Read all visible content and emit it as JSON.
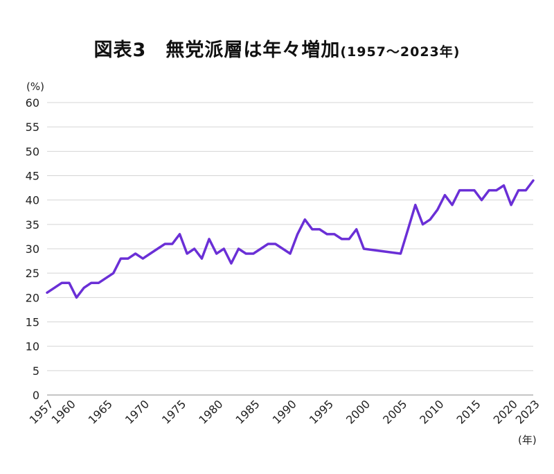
{
  "chart_data": {
    "type": "line",
    "title": "図表3　無党派層は年々増加",
    "subtitle": "(1957〜2023年)",
    "y_unit_label": "(%)",
    "x_unit_label": "(年)",
    "ylim": [
      0,
      60
    ],
    "xlim": [
      1957,
      2023
    ],
    "yticks": [
      "0",
      "5",
      "10",
      "15",
      "20",
      "25",
      "30",
      "35",
      "40",
      "45",
      "50",
      "55",
      "60"
    ],
    "xticks": [
      "1957",
      "1960",
      "1965",
      "1970",
      "1975",
      "1980",
      "1985",
      "1990",
      "1995",
      "2000",
      "2005",
      "2010",
      "2015",
      "2020",
      "2023"
    ],
    "grid": true,
    "line_color": "#6a2fd6",
    "series": [
      {
        "x": [
          1957,
          1958,
          1959,
          1960,
          1961,
          1962,
          1963,
          1964,
          1965,
          1966,
          1967,
          1968,
          1969,
          1970,
          1971,
          1972,
          1973,
          1974,
          1975,
          1976,
          1977,
          1978,
          1979,
          1980,
          1981,
          1982,
          1983,
          1984,
          1985,
          1986,
          1987,
          1988,
          1989,
          1990,
          1991,
          1992,
          1993,
          1994,
          1995,
          1996,
          1997,
          1998,
          1999,
          2000,
          2005,
          2006,
          2007,
          2008,
          2009,
          2010,
          2011,
          2012,
          2013,
          2014,
          2015,
          2016,
          2017,
          2018,
          2019,
          2020,
          2021,
          2022,
          2023
        ],
        "values": [
          21,
          22,
          23,
          23,
          20,
          22,
          23,
          23,
          24,
          25,
          28,
          28,
          29,
          28,
          29,
          30,
          31,
          31,
          33,
          29,
          30,
          28,
          32,
          29,
          30,
          27,
          30,
          29,
          29,
          30,
          31,
          31,
          30,
          29,
          33,
          36,
          34,
          34,
          33,
          33,
          32,
          32,
          34,
          30,
          29,
          34,
          39,
          35,
          36,
          38,
          41,
          39,
          42,
          42,
          42,
          40,
          42,
          42,
          43,
          39,
          42,
          42,
          44
        ]
      }
    ]
  }
}
